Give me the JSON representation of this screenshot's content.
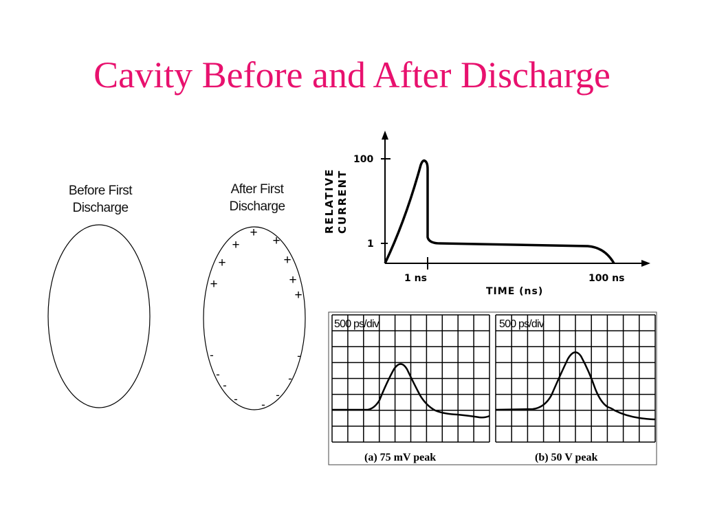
{
  "title": "Cavity Before and After Discharge",
  "before": {
    "line1": "Before First",
    "line2": "Discharge"
  },
  "after": {
    "line1": "After First",
    "line2": "Discharge",
    "plus": "+",
    "minus": "-"
  },
  "current_plot": {
    "ylabel_1": "RELATIVE",
    "ylabel_2": "CURRENT",
    "ytick_top": "100",
    "ytick_bottom": "1",
    "xtick_1": "1 ns",
    "xtick_2": "100 ns",
    "xlabel": "TIME (ns)"
  },
  "scope_a": {
    "timebase": "500 ps/div",
    "caption": "(a) 75 mV peak"
  },
  "scope_b": {
    "timebase": "500 ps/div",
    "caption": "(b) 50 V peak"
  }
}
